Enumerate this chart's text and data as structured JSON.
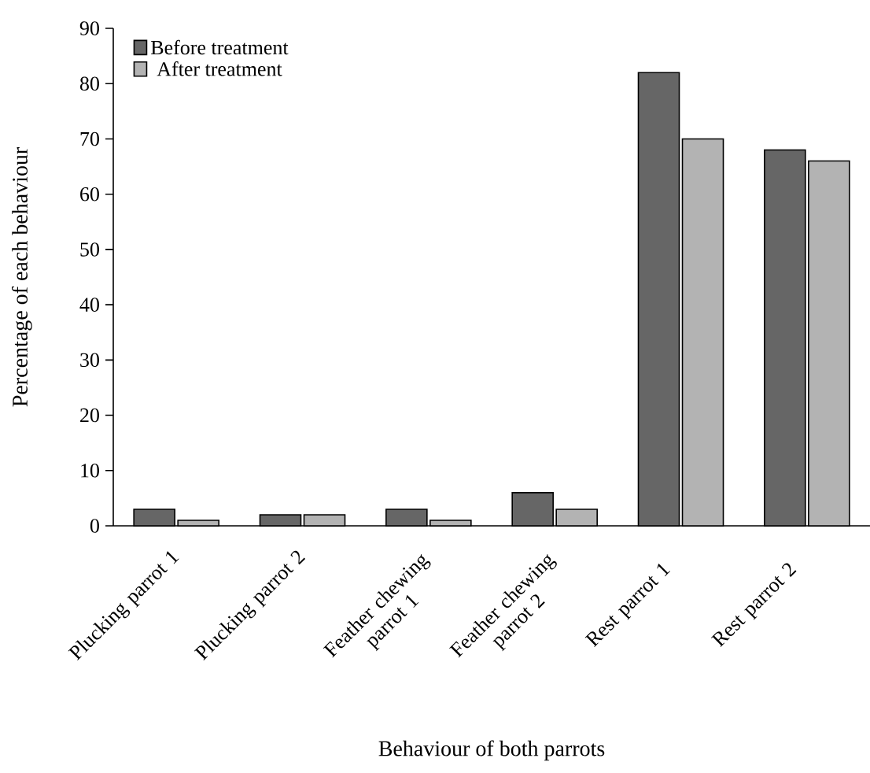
{
  "chart_data": {
    "type": "bar",
    "xlabel": "Behaviour of both parrots",
    "ylabel": "Percentage of each behaviour",
    "categories": [
      "Plucking parrot 1",
      "Plucking parrot 2",
      "Feather chewing parrot 1",
      "Feather chewing parrot 2",
      "Rest parrot 1",
      "Rest parrot 2"
    ],
    "series": [
      {
        "name": "Before treatment",
        "color": "#666666",
        "values": [
          3,
          2,
          3,
          6,
          82,
          68
        ]
      },
      {
        "name": "After treatment",
        "color": "#b3b3b3",
        "values": [
          1,
          2,
          1,
          3,
          70,
          66
        ]
      }
    ],
    "ylim": [
      0,
      90
    ],
    "yticks": [
      0,
      10,
      20,
      30,
      40,
      50,
      60,
      70,
      80,
      90
    ],
    "grid": false,
    "legend": "top left"
  }
}
